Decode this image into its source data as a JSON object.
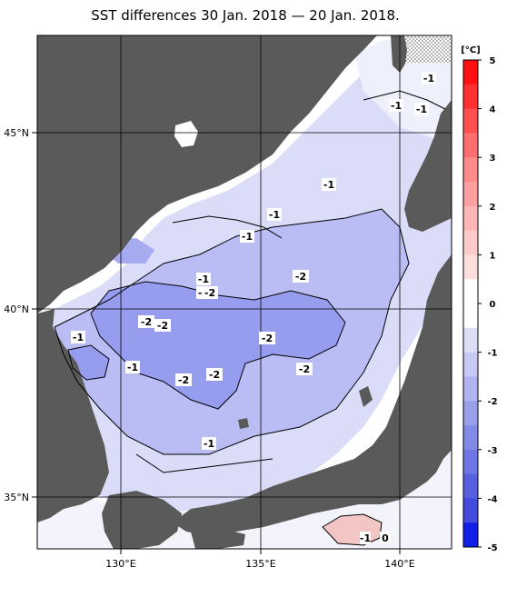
{
  "title": "SST differences 30 Jan. 2018 — 20 Jan. 2018.",
  "colorbar": {
    "unit": "[°C]",
    "ticks": [
      "5",
      "4",
      "3",
      "2",
      "1",
      "0",
      "-1",
      "-2",
      "-3",
      "-4",
      "-5"
    ]
  },
  "axes": {
    "lon_labels": [
      "130°E",
      "135°E",
      "140°E"
    ],
    "lat_labels": [
      "45°N",
      "40°N",
      "35°N"
    ]
  },
  "contour_labels": [
    "-1",
    "-1",
    "-1",
    "-1",
    "-1",
    "-1",
    "-1",
    "-2",
    "-1",
    "-2",
    "-2",
    "-2",
    "-1",
    "-2",
    "-2",
    "-2",
    "-2",
    "-1",
    "-1",
    "-1",
    "0"
  ],
  "colors": {
    "land": "#5a5a5a",
    "neg1": "#d9dcfa",
    "neg2": "#b4b9f4",
    "neg3": "#8f96ee",
    "pos1": "#f4c4c4"
  }
}
